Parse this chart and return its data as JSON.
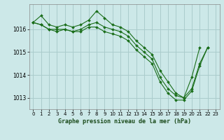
{
  "background_color": "#cce8e8",
  "grid_color": "#aacccc",
  "line_color": "#1a6e1a",
  "marker_color": "#1a6e1a",
  "title": "Graphe pression niveau de la mer (hPa)",
  "xlim": [
    -0.5,
    23.5
  ],
  "ylim": [
    1012.5,
    1017.1
  ],
  "yticks": [
    1013,
    1014,
    1015,
    1016
  ],
  "xticks": [
    0,
    1,
    2,
    3,
    4,
    5,
    6,
    7,
    8,
    9,
    10,
    11,
    12,
    13,
    14,
    15,
    16,
    17,
    18,
    19,
    20,
    21,
    22,
    23
  ],
  "series": [
    {
      "x": [
        0,
        1,
        2,
        3,
        4,
        5,
        6,
        7,
        8,
        9,
        10,
        11,
        12,
        13,
        14,
        15,
        16,
        17,
        18,
        19,
        20,
        21
      ],
      "y": [
        1016.3,
        1016.6,
        1016.2,
        1016.1,
        1016.2,
        1016.1,
        1016.2,
        1016.4,
        1016.8,
        1016.5,
        1016.2,
        1016.1,
        1015.9,
        1015.5,
        1015.2,
        1014.9,
        1014.2,
        1013.7,
        1013.2,
        1013.0,
        1013.9,
        1015.2
      ]
    },
    {
      "x": [
        0,
        1,
        2,
        3,
        4,
        5,
        6,
        7,
        8,
        9,
        10,
        11,
        12,
        13,
        14,
        15,
        16,
        17,
        18,
        19,
        20,
        21,
        22
      ],
      "y": [
        1016.3,
        1016.2,
        1016.0,
        1016.0,
        1016.0,
        1015.9,
        1016.0,
        1016.2,
        1016.3,
        1016.1,
        1016.0,
        1015.9,
        1015.7,
        1015.3,
        1015.0,
        1014.7,
        1013.9,
        1013.4,
        1013.1,
        1013.0,
        1013.4,
        1014.5,
        1015.2
      ]
    },
    {
      "x": [
        0,
        1,
        2,
        3,
        4,
        5,
        6,
        7,
        8,
        9,
        10,
        11,
        12,
        13,
        14,
        15,
        16,
        17,
        18,
        19,
        20,
        21,
        22
      ],
      "y": [
        1016.3,
        1016.2,
        1016.0,
        1015.9,
        1016.0,
        1015.9,
        1015.9,
        1016.1,
        1016.1,
        1015.9,
        1015.8,
        1015.7,
        1015.5,
        1015.1,
        1014.8,
        1014.5,
        1013.7,
        1013.2,
        1012.9,
        1012.9,
        1013.3,
        1014.4,
        1015.2
      ]
    }
  ]
}
